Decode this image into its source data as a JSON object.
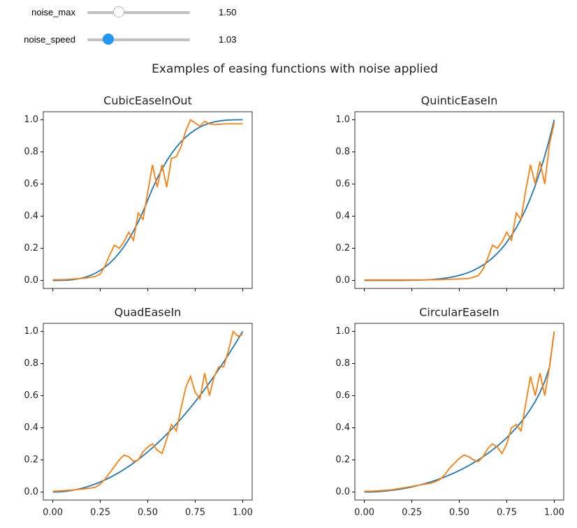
{
  "controls": [
    {
      "label": "noise_max",
      "value": "1.50"
    },
    {
      "label": "noise_speed",
      "value": "1.03"
    }
  ],
  "title": "Examples of easing functions with noise applied",
  "chart_data": [
    {
      "type": "line",
      "title": "CubicEaseInOut",
      "x": [
        0,
        0.025,
        0.05,
        0.075,
        0.1,
        0.125,
        0.15,
        0.175,
        0.2,
        0.225,
        0.25,
        0.275,
        0.3,
        0.325,
        0.35,
        0.375,
        0.4,
        0.425,
        0.45,
        0.475,
        0.5,
        0.525,
        0.55,
        0.575,
        0.6,
        0.625,
        0.65,
        0.675,
        0.7,
        0.725,
        0.75,
        0.775,
        0.8,
        0.825,
        0.85,
        0.875,
        0.9,
        0.925,
        0.95,
        0.975,
        1
      ],
      "series": [
        {
          "color": "#1f77b4",
          "values": [
            0,
            0.0001,
            0.0005,
            0.0017,
            0.004,
            0.0078,
            0.0135,
            0.0214,
            0.032,
            0.0456,
            0.0625,
            0.0832,
            0.108,
            0.1373,
            0.1715,
            0.2109,
            0.256,
            0.3071,
            0.3645,
            0.4287,
            0.5,
            0.5713,
            0.6355,
            0.6929,
            0.744,
            0.7891,
            0.8285,
            0.8627,
            0.892,
            0.9168,
            0.9375,
            0.9544,
            0.968,
            0.9786,
            0.9865,
            0.9922,
            0.996,
            0.9983,
            0.9995,
            0.9999,
            1
          ]
        },
        {
          "color": "#ff7f0e",
          "values": [
            0.005,
            0.005,
            0.005,
            0.006,
            0.008,
            0.01,
            0.012,
            0.015,
            0.02,
            0.025,
            0.04,
            0.09,
            0.16,
            0.22,
            0.2,
            0.24,
            0.3,
            0.25,
            0.42,
            0.38,
            0.55,
            0.72,
            0.58,
            0.72,
            0.58,
            0.76,
            0.77,
            0.83,
            0.93,
            1.0,
            0.98,
            0.96,
            0.99,
            0.975,
            0.97,
            0.972,
            0.974,
            0.975,
            0.975,
            0.975,
            0.975
          ]
        }
      ],
      "xlim": [
        -0.05,
        1.05
      ],
      "ylim": [
        -0.05,
        1.05
      ],
      "xticks": [
        0,
        0.25,
        0.5,
        0.75,
        1
      ],
      "yticks": [
        {
          "value": 0,
          "label": "0.0"
        },
        0.2,
        0.4,
        0.6,
        0.8,
        {
          "value": 1,
          "label": "1.0"
        }
      ]
    },
    {
      "type": "line",
      "title": "QuinticEaseIn",
      "x": [
        0,
        0.025,
        0.05,
        0.075,
        0.1,
        0.125,
        0.15,
        0.175,
        0.2,
        0.225,
        0.25,
        0.275,
        0.3,
        0.325,
        0.35,
        0.375,
        0.4,
        0.425,
        0.45,
        0.475,
        0.5,
        0.525,
        0.55,
        0.575,
        0.6,
        0.625,
        0.65,
        0.675,
        0.7,
        0.725,
        0.75,
        0.775,
        0.8,
        0.825,
        0.85,
        0.875,
        0.9,
        0.925,
        0.95,
        0.975,
        1
      ],
      "series": [
        {
          "color": "#1f77b4",
          "values": [
            0,
            0,
            0,
            0,
            0,
            0,
            0.0001,
            0.0002,
            0.0003,
            0.0006,
            0.001,
            0.0016,
            0.0024,
            0.0036,
            0.0053,
            0.0074,
            0.0102,
            0.0139,
            0.0185,
            0.0241,
            0.0313,
            0.0399,
            0.0503,
            0.0629,
            0.0778,
            0.0954,
            0.116,
            0.1401,
            0.168,
            0.2003,
            0.2373,
            0.2792,
            0.3277,
            0.3822,
            0.4437,
            0.5129,
            0.5905,
            0.677,
            0.7738,
            0.8811,
            1
          ]
        },
        {
          "color": "#ff7f0e",
          "values": [
            0.003,
            0.003,
            0.003,
            0.003,
            0.003,
            0.003,
            0.003,
            0.003,
            0.003,
            0.003,
            0.003,
            0.003,
            0.003,
            0.003,
            0.004,
            0.004,
            0.005,
            0.006,
            0.007,
            0.008,
            0.009,
            0.01,
            0.012,
            0.02,
            0.03,
            0.07,
            0.14,
            0.22,
            0.2,
            0.24,
            0.3,
            0.25,
            0.42,
            0.38,
            0.56,
            0.72,
            0.6,
            0.74,
            0.6,
            0.85,
            0.98
          ]
        }
      ],
      "xlim": [
        -0.05,
        1.05
      ],
      "ylim": [
        -0.05,
        1.05
      ],
      "xticks": [
        0,
        0.25,
        0.5,
        0.75,
        1
      ],
      "yticks": [
        {
          "value": 0,
          "label": "0.0"
        },
        0.2,
        0.4,
        0.6,
        0.8,
        {
          "value": 1,
          "label": "1.0"
        }
      ]
    },
    {
      "type": "line",
      "title": "QuadEaseIn",
      "x": [
        0,
        0.025,
        0.05,
        0.075,
        0.1,
        0.125,
        0.15,
        0.175,
        0.2,
        0.225,
        0.25,
        0.275,
        0.3,
        0.325,
        0.35,
        0.375,
        0.4,
        0.425,
        0.45,
        0.475,
        0.5,
        0.525,
        0.55,
        0.575,
        0.6,
        0.625,
        0.65,
        0.675,
        0.7,
        0.725,
        0.75,
        0.775,
        0.8,
        0.825,
        0.85,
        0.875,
        0.9,
        0.925,
        0.95,
        0.975,
        1
      ],
      "series": [
        {
          "color": "#1f77b4",
          "values": [
            0,
            0.0006,
            0.0025,
            0.0056,
            0.01,
            0.0156,
            0.0225,
            0.0306,
            0.04,
            0.0506,
            0.0625,
            0.0756,
            0.09,
            0.1056,
            0.1225,
            0.1406,
            0.16,
            0.1806,
            0.2025,
            0.2256,
            0.25,
            0.2756,
            0.3025,
            0.3306,
            0.36,
            0.3906,
            0.4225,
            0.4556,
            0.49,
            0.5256,
            0.5625,
            0.6006,
            0.64,
            0.6806,
            0.7225,
            0.7656,
            0.81,
            0.8556,
            0.9025,
            0.9506,
            1
          ]
        },
        {
          "color": "#ff7f0e",
          "values": [
            0.005,
            0.006,
            0.008,
            0.01,
            0.012,
            0.015,
            0.018,
            0.021,
            0.025,
            0.03,
            0.05,
            0.08,
            0.12,
            0.16,
            0.2,
            0.23,
            0.22,
            0.19,
            0.2,
            0.25,
            0.28,
            0.3,
            0.26,
            0.24,
            0.33,
            0.42,
            0.38,
            0.52,
            0.65,
            0.72,
            0.62,
            0.58,
            0.74,
            0.6,
            0.72,
            0.78,
            0.78,
            0.88,
            1.0,
            0.97,
            0.98
          ]
        }
      ],
      "xlim": [
        -0.05,
        1.05
      ],
      "ylim": [
        -0.05,
        1.05
      ],
      "xticks": [
        {
          "value": 0,
          "label": "0.00"
        },
        0.25,
        {
          "value": 0.5,
          "label": "0.50"
        },
        0.75,
        {
          "value": 1,
          "label": "1.00"
        }
      ],
      "yticks": [
        {
          "value": 0,
          "label": "0.0"
        },
        0.2,
        0.4,
        0.6,
        0.8,
        {
          "value": 1,
          "label": "1.0"
        }
      ]
    },
    {
      "type": "line",
      "title": "CircularEaseIn",
      "x": [
        0,
        0.025,
        0.05,
        0.075,
        0.1,
        0.125,
        0.15,
        0.175,
        0.2,
        0.225,
        0.25,
        0.275,
        0.3,
        0.325,
        0.35,
        0.375,
        0.4,
        0.425,
        0.45,
        0.475,
        0.5,
        0.525,
        0.55,
        0.575,
        0.6,
        0.625,
        0.65,
        0.675,
        0.7,
        0.725,
        0.75,
        0.775,
        0.8,
        0.825,
        0.85,
        0.875,
        0.9,
        0.925,
        0.95,
        0.975,
        1
      ],
      "series": [
        {
          "color": "#1f77b4",
          "values": [
            0,
            0.0003,
            0.0013,
            0.0028,
            0.005,
            0.0078,
            0.0113,
            0.0154,
            0.0202,
            0.0256,
            0.0318,
            0.0386,
            0.0461,
            0.0543,
            0.0633,
            0.073,
            0.0835,
            0.0948,
            0.107,
            0.12,
            0.134,
            0.1489,
            0.1648,
            0.1818,
            0.2,
            0.2194,
            0.2401,
            0.2622,
            0.2859,
            0.3112,
            0.3386,
            0.368,
            0.4,
            0.4348,
            0.4732,
            0.5159,
            0.5641,
            0.62,
            0.6878,
            0.7778,
            1
          ]
        },
        {
          "color": "#ff7f0e",
          "values": [
            0.005,
            0.005,
            0.006,
            0.008,
            0.01,
            0.012,
            0.015,
            0.02,
            0.025,
            0.03,
            0.035,
            0.04,
            0.045,
            0.05,
            0.055,
            0.065,
            0.08,
            0.11,
            0.15,
            0.18,
            0.21,
            0.23,
            0.22,
            0.2,
            0.19,
            0.22,
            0.27,
            0.3,
            0.28,
            0.24,
            0.3,
            0.4,
            0.42,
            0.38,
            0.55,
            0.72,
            0.6,
            0.74,
            0.6,
            0.78,
            1.0
          ]
        }
      ],
      "xlim": [
        -0.05,
        1.05
      ],
      "ylim": [
        -0.05,
        1.05
      ],
      "xticks": [
        {
          "value": 0,
          "label": "0.00"
        },
        0.25,
        {
          "value": 0.5,
          "label": "0.50"
        },
        0.75,
        {
          "value": 1,
          "label": "1.00"
        }
      ],
      "yticks": [
        {
          "value": 0,
          "label": "0.0"
        },
        0.2,
        0.4,
        0.6,
        0.8,
        {
          "value": 1,
          "label": "1.0"
        }
      ]
    }
  ]
}
